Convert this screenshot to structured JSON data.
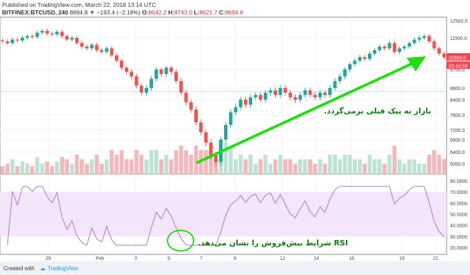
{
  "header": {
    "published": "Published on TradingView.com, March 22, 2018 13:14 UTC",
    "symbol": "BITFINEX:BTCUSD, 240",
    "last": "8694.8",
    "change": "−193.4 (−2.18%)",
    "o_label": "O:",
    "o": "8642.2",
    "h_label": "H:",
    "h": "8743.0",
    "l_label": "L:",
    "l": "8621.7",
    "c_label": "C:",
    "c": "8694.8"
  },
  "annotations": {
    "price": "بازار به پیک قبلی برمی‌گردد.",
    "rsi": "RSI شرایط بیش‌فروش را نشان می‌دهد."
  },
  "footer": {
    "created": "Created with",
    "brand": "TradingView"
  },
  "colors": {
    "up": "#26a69a",
    "down": "#ef5350",
    "arrow": "#22dd11",
    "rsi": "#b070d0"
  },
  "chart_data": {
    "type": "candlestick",
    "price_ticks": [
      "12500.0",
      "11500.0",
      "9700.0",
      "8900.0",
      "8400.0",
      "7800.0",
      "7200.0",
      "6800.0",
      "6400.0",
      "6050.0"
    ],
    "price_tick_values": [
      12500,
      11500,
      9700,
      8900,
      8400,
      7800,
      7200,
      6800,
      6400,
      6050
    ],
    "last_price_label": "10393.0",
    "countdown": "02:44:58",
    "rsi_ticks": [
      "80.0000",
      "70.0000",
      "60.0000",
      "50.0000",
      "40.0000",
      "30.0000",
      "20.0000"
    ],
    "x_ticks": [
      "29",
      "Feb",
      "3",
      "5",
      "7",
      "9",
      "12",
      "14",
      "16",
      "19",
      "21"
    ],
    "closes": [
      11300,
      11200,
      11400,
      11350,
      11500,
      11600,
      11550,
      11800,
      11900,
      11750,
      11700,
      11850,
      11600,
      11400,
      11500,
      11200,
      11000,
      10900,
      11100,
      10800,
      10700,
      10900,
      10500,
      10200,
      9800,
      9600,
      9400,
      9000,
      8700,
      8900,
      9300,
      9700,
      9500,
      9800,
      9600,
      9200,
      8700,
      8300,
      8000,
      7500,
      7100,
      6700,
      6300,
      6100,
      6800,
      7400,
      7900,
      8100,
      8400,
      8200,
      8500,
      8600,
      8400,
      8700,
      8800,
      8600,
      8900,
      8700,
      8500,
      8400,
      8600,
      8800,
      8600,
      8500,
      8700,
      8600,
      8900,
      9200,
      9400,
      9700,
      10000,
      10200,
      10400,
      10300,
      10600,
      10800,
      11000,
      10900,
      11200,
      10700,
      10900,
      11000,
      11200,
      11400,
      11500,
      11600,
      11300,
      10900,
      10600,
      10393
    ]
  }
}
